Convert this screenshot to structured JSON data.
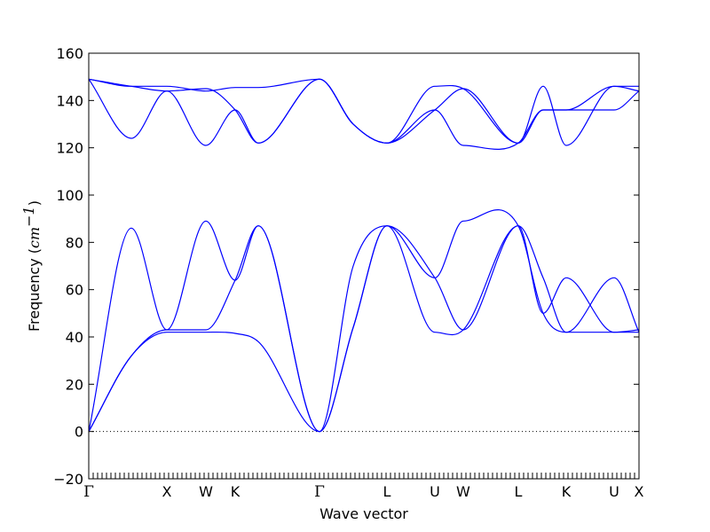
{
  "chart_data": {
    "type": "line",
    "xlabel": "Wave vector",
    "ylabel": {
      "prefix": "Frequency (",
      "math": "cm",
      "sup": "−1",
      "suffix": ")"
    },
    "ylim": [
      -20,
      160
    ],
    "yticks": [
      -20,
      0,
      20,
      40,
      60,
      80,
      100,
      120,
      140,
      160
    ],
    "ytick_labels": [
      "−20",
      "0",
      "20",
      "40",
      "60",
      "80",
      "100",
      "120",
      "140",
      "160"
    ],
    "xlim": [
      0,
      1
    ],
    "high_symmetry_points": [
      {
        "label": "Γ",
        "x": 0.0
      },
      {
        "label": "X",
        "x": 0.1419
      },
      {
        "label": "W",
        "x": 0.2129
      },
      {
        "label": "K",
        "x": 0.2661
      },
      {
        "label": "Γ",
        "x": 0.4194
      },
      {
        "label": "L",
        "x": 0.5419
      },
      {
        "label": "U",
        "x": 0.629
      },
      {
        "label": "W",
        "x": 0.6806
      },
      {
        "label": "L",
        "x": 0.7806
      },
      {
        "label": "K",
        "x": 0.8677
      },
      {
        "label": "U",
        "x": 0.9548
      },
      {
        "label": "X",
        "x": 1.0
      }
    ],
    "zero_line": {
      "y": 0,
      "style": "dotted"
    },
    "line_color": "#0000ff",
    "series": [
      {
        "x": [
          0.0,
          0.0774,
          0.1419,
          0.2129,
          0.2661,
          0.3081,
          0.4194,
          0.4806,
          0.5419,
          0.629,
          0.6806,
          0.7806,
          0.8258,
          0.8677,
          0.9548,
          1.0
        ],
        "values": [
          0,
          32,
          42,
          42,
          41.5,
          38,
          0,
          44,
          87,
          65,
          43,
          87,
          65,
          42,
          42,
          42
        ]
      },
      {
        "x": [
          0.0,
          0.0774,
          0.1419,
          0.2129,
          0.2661,
          0.3081,
          0.4194,
          0.4806,
          0.5419,
          0.629,
          0.6806,
          0.7806,
          0.8258,
          0.8677,
          0.9548,
          1.0
        ],
        "values": [
          0,
          32,
          43,
          43,
          64,
          87,
          0,
          44,
          87,
          42,
          43,
          87,
          50,
          65,
          42,
          43
        ]
      },
      {
        "x": [
          0.0,
          0.0774,
          0.1419,
          0.2129,
          0.2661,
          0.3081,
          0.4194,
          0.4806,
          0.5419,
          0.629,
          0.6806,
          0.7806,
          0.8258,
          0.8677,
          0.9548,
          1.0
        ],
        "values": [
          0,
          86,
          43,
          89,
          64,
          87,
          0,
          70,
          87,
          65,
          89,
          87,
          50,
          42,
          65,
          42
        ]
      },
      {
        "x": [
          0.0,
          0.0774,
          0.1419,
          0.2129,
          0.2661,
          0.3081,
          0.4194,
          0.4806,
          0.5419,
          0.629,
          0.6806,
          0.7806,
          0.8258,
          0.8677,
          0.9548,
          1.0
        ],
        "values": [
          149,
          124,
          144,
          121,
          136,
          122,
          149,
          130,
          122,
          136,
          145,
          122,
          136,
          136,
          136,
          144
        ]
      },
      {
        "x": [
          0.0,
          0.0774,
          0.1419,
          0.2129,
          0.2661,
          0.3081,
          0.4194,
          0.4806,
          0.5419,
          0.629,
          0.6806,
          0.7806,
          0.8258,
          0.8677,
          0.9548,
          1.0
        ],
        "values": [
          149,
          146,
          144,
          145,
          136,
          122,
          149,
          130,
          122,
          136,
          121,
          122,
          136,
          136,
          146,
          144
        ]
      },
      {
        "x": [
          0.0,
          0.0774,
          0.1419,
          0.2129,
          0.2661,
          0.3081,
          0.4194,
          0.4806,
          0.5419,
          0.629,
          0.6806,
          0.7806,
          0.8258,
          0.8677,
          0.9548,
          1.0
        ],
        "values": [
          149,
          146,
          146,
          144,
          145.5,
          145.5,
          149,
          130,
          122,
          146,
          145,
          122,
          146,
          121,
          146,
          146
        ]
      }
    ]
  }
}
